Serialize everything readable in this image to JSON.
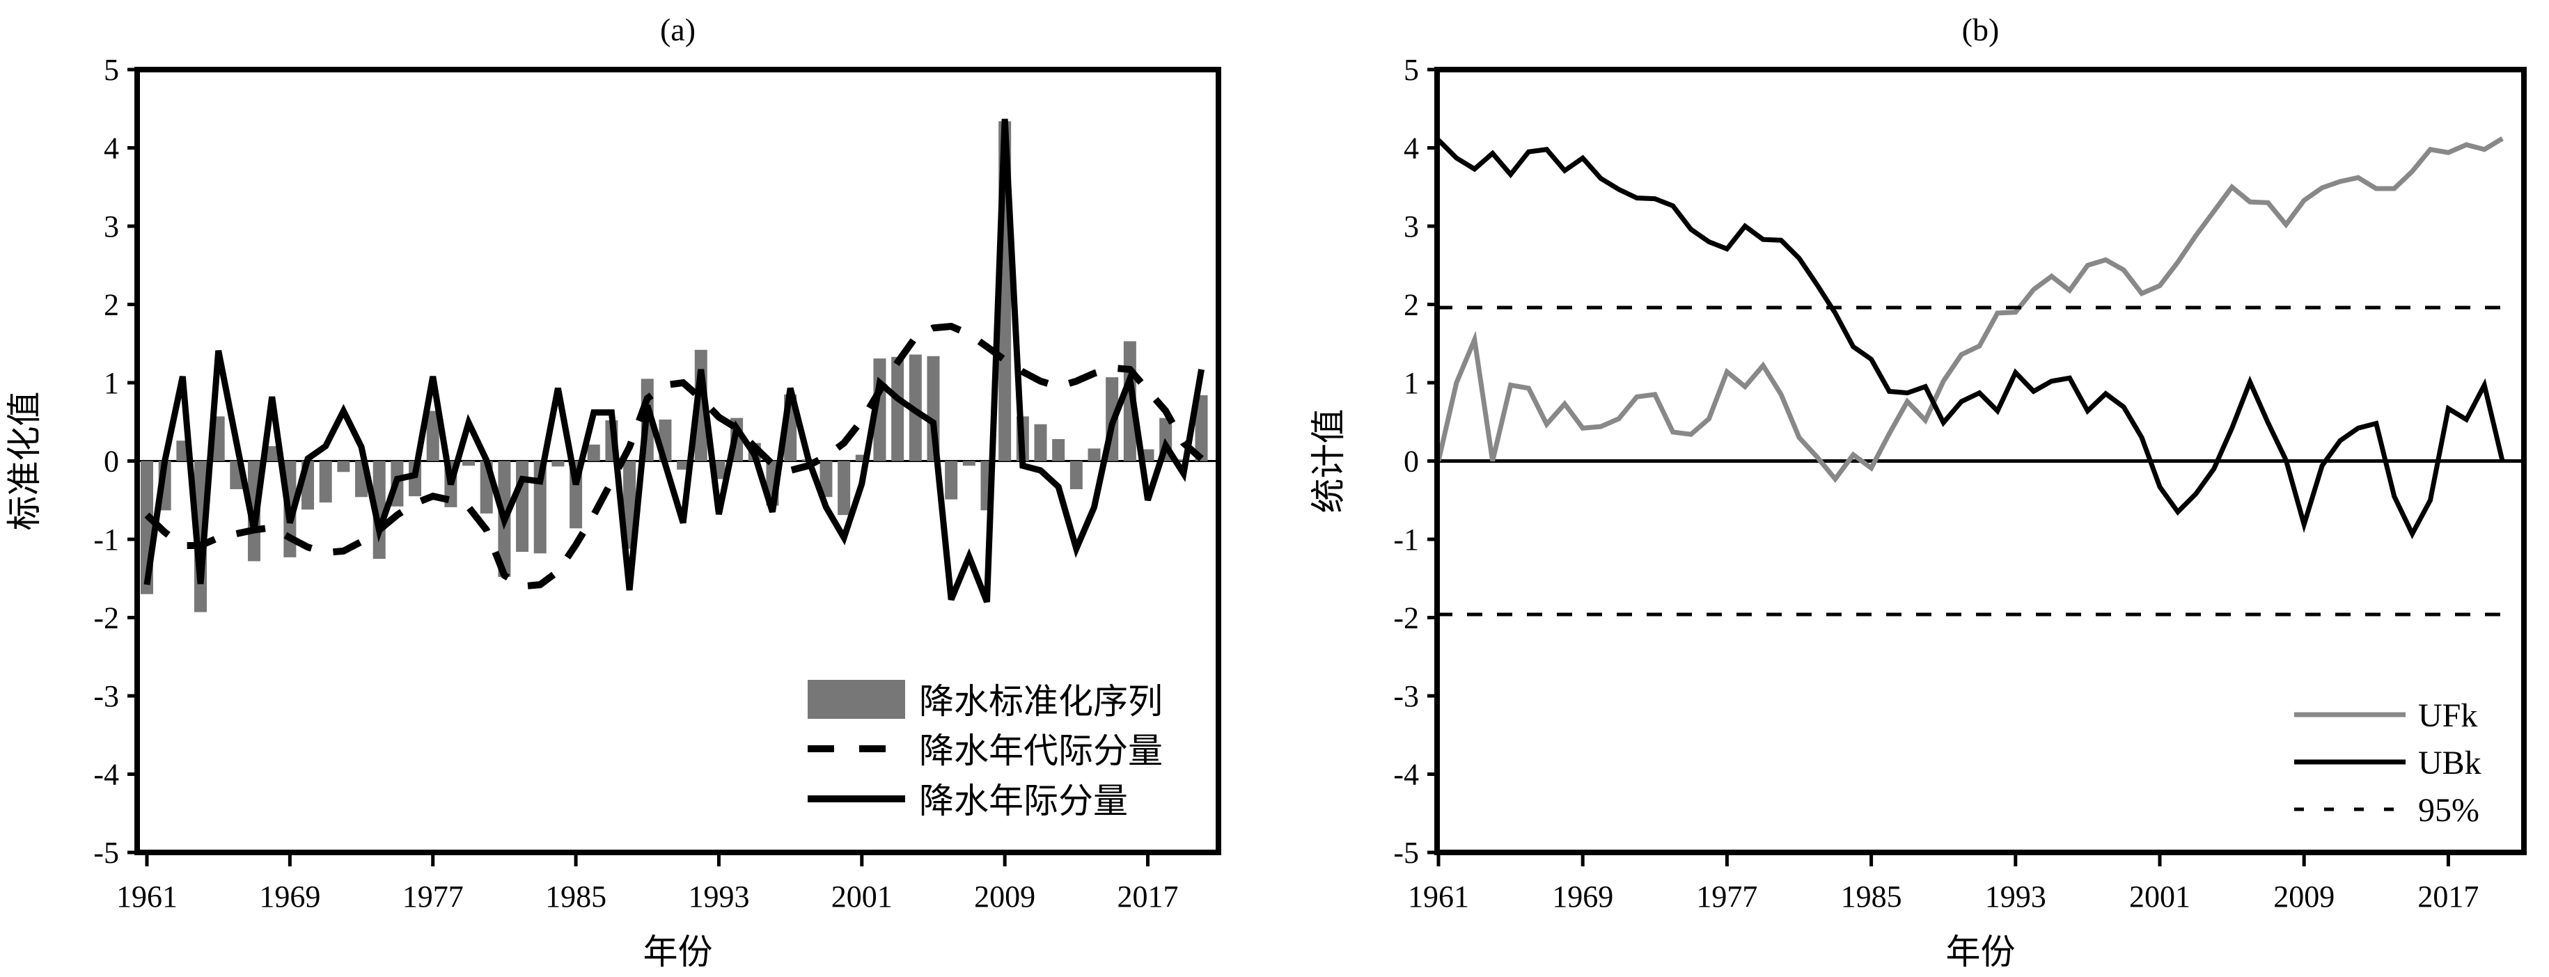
{
  "chart_data": [
    {
      "type": "bar",
      "title": "(a)",
      "xlabel": "年份",
      "ylabel": "标准化值",
      "ylim": [
        -5,
        5
      ],
      "yticks": [
        -5,
        -4,
        -3,
        -2,
        -1,
        0,
        1,
        2,
        3,
        4,
        5
      ],
      "xticks": [
        1961,
        1969,
        1977,
        1985,
        1993,
        2001,
        2009,
        2017
      ],
      "x_start": 1961,
      "x_end": 2020,
      "legend_position": "bottom-right",
      "series": [
        {
          "name": "降水标准化序列",
          "kind": "bar",
          "color": "#777777",
          "values": [
            -1.7,
            -0.63,
            0.26,
            -1.93,
            0.57,
            -0.36,
            -1.28,
            0.19,
            -1.23,
            -0.62,
            -0.53,
            -0.14,
            -0.46,
            -1.25,
            -0.58,
            -0.45,
            0.64,
            -0.59,
            -0.06,
            -0.67,
            -1.48,
            -1.16,
            -1.18,
            -0.07,
            -0.86,
            0.21,
            0.52,
            -1.12,
            1.05,
            0.53,
            -0.11,
            1.42,
            -0.23,
            0.55,
            0.23,
            -0.57,
            0.85,
            0.02,
            -0.46,
            -0.69,
            0.08,
            1.31,
            1.33,
            1.36,
            1.34,
            -0.49,
            -0.06,
            -0.63,
            4.34,
            0.57,
            0.47,
            0.28,
            -0.36,
            0.16,
            1.07,
            1.53,
            0.15,
            0.55,
            0.02,
            0.84
          ]
        },
        {
          "name": "降水年代际分量",
          "kind": "dashed",
          "color": "#000000",
          "values": [
            -0.69,
            -0.91,
            -1.08,
            -1.08,
            -0.98,
            -0.93,
            -0.88,
            -0.85,
            -0.98,
            -1.1,
            -1.17,
            -1.15,
            -1.03,
            -0.88,
            -0.69,
            -0.54,
            -0.45,
            -0.5,
            -0.59,
            -0.88,
            -1.46,
            -1.6,
            -1.58,
            -1.41,
            -1.07,
            -0.69,
            -0.26,
            0.18,
            0.8,
            0.97,
            1.0,
            0.8,
            0.56,
            0.42,
            0.18,
            -0.04,
            -0.12,
            -0.06,
            0.06,
            0.23,
            0.52,
            0.9,
            1.26,
            1.58,
            1.7,
            1.72,
            1.62,
            1.46,
            1.29,
            1.14,
            1.02,
            0.95,
            1.02,
            1.12,
            1.19,
            1.17,
            0.9,
            0.64,
            0.23,
            0.03
          ]
        },
        {
          "name": "降水年际分量",
          "kind": "solid",
          "color": "#000000",
          "values": [
            -1.58,
            0.0,
            1.08,
            -1.57,
            1.41,
            0.25,
            -0.89,
            0.82,
            -0.79,
            0.03,
            0.19,
            0.64,
            0.18,
            -0.89,
            -0.23,
            -0.18,
            1.08,
            -0.3,
            0.49,
            0.01,
            -0.76,
            -0.23,
            -0.26,
            0.93,
            -0.3,
            0.62,
            0.62,
            -1.65,
            0.71,
            -0.04,
            -0.79,
            1.17,
            -0.68,
            0.42,
            0.08,
            -0.65,
            0.93,
            0.03,
            -0.59,
            -0.98,
            -0.29,
            1.0,
            0.8,
            0.64,
            0.49,
            -1.77,
            -1.22,
            -1.8,
            4.37,
            -0.06,
            -0.12,
            -0.33,
            -1.12,
            -0.59,
            0.47,
            1.05,
            -0.5,
            0.2,
            -0.16,
            1.17
          ]
        }
      ]
    },
    {
      "type": "line",
      "title": "(b)",
      "xlabel": "年份",
      "ylabel": "统计值",
      "ylim": [
        -5,
        5
      ],
      "yticks": [
        -5,
        -4,
        -3,
        -2,
        -1,
        0,
        1,
        2,
        3,
        4,
        5
      ],
      "xticks": [
        1961,
        1969,
        1977,
        1985,
        1993,
        2001,
        2009,
        2017
      ],
      "x_start": 1961,
      "x_end": 2020,
      "legend_position": "bottom-right",
      "confidence_level": 1.96,
      "series": [
        {
          "name": "UFk",
          "kind": "solid",
          "color": "#888888",
          "values": [
            0.0,
            1.0,
            1.55,
            0.0,
            0.97,
            0.93,
            0.47,
            0.73,
            0.42,
            0.44,
            0.54,
            0.82,
            0.85,
            0.37,
            0.34,
            0.54,
            1.14,
            0.95,
            1.22,
            0.85,
            0.3,
            0.05,
            -0.23,
            0.08,
            -0.09,
            0.35,
            0.76,
            0.52,
            1.02,
            1.36,
            1.47,
            1.89,
            1.9,
            2.19,
            2.36,
            2.18,
            2.5,
            2.57,
            2.44,
            2.14,
            2.24,
            2.54,
            2.88,
            3.19,
            3.5,
            3.31,
            3.3,
            3.02,
            3.33,
            3.49,
            3.57,
            3.62,
            3.48,
            3.48,
            3.7,
            3.98,
            3.94,
            4.04,
            3.98,
            4.12
          ]
        },
        {
          "name": "UBk",
          "kind": "solid",
          "color": "#000000",
          "values": [
            4.1,
            3.87,
            3.73,
            3.93,
            3.66,
            3.95,
            3.98,
            3.71,
            3.87,
            3.61,
            3.47,
            3.36,
            3.35,
            3.26,
            2.96,
            2.8,
            2.71,
            3.0,
            2.83,
            2.82,
            2.59,
            2.25,
            1.89,
            1.46,
            1.3,
            0.89,
            0.87,
            0.95,
            0.49,
            0.76,
            0.87,
            0.64,
            1.13,
            0.89,
            1.02,
            1.06,
            0.64,
            0.86,
            0.69,
            0.3,
            -0.33,
            -0.65,
            -0.42,
            -0.1,
            0.42,
            1.01,
            0.49,
            0.01,
            -0.81,
            -0.06,
            0.26,
            0.42,
            0.48,
            -0.45,
            -0.93,
            -0.5,
            0.67,
            0.53,
            0.97,
            0.0
          ]
        },
        {
          "name": "95%",
          "kind": "dashed",
          "color": "#000000",
          "values": [
            1.96,
            -1.96
          ]
        }
      ]
    }
  ]
}
